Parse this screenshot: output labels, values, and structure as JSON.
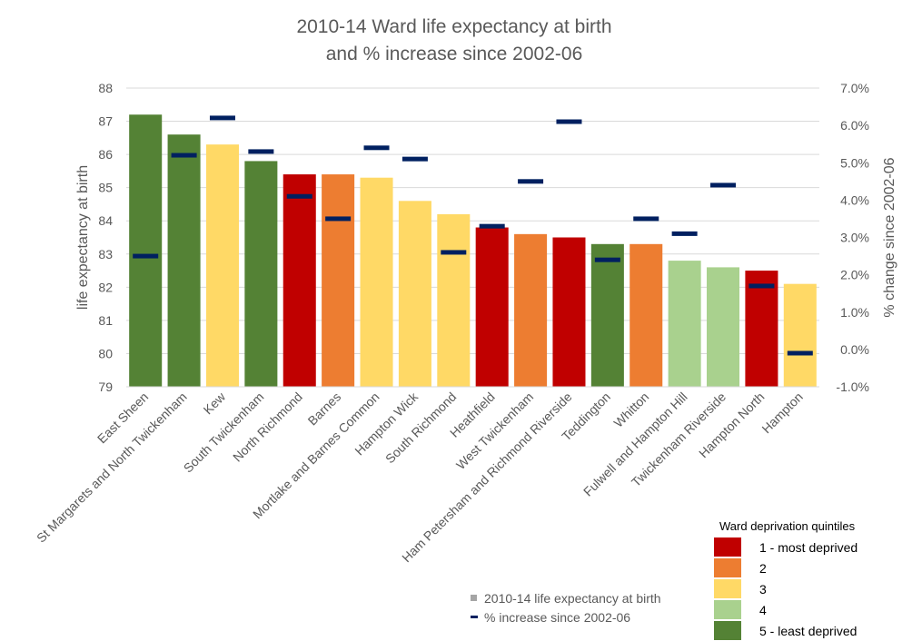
{
  "chart_data": {
    "type": "bar",
    "title": [
      "2010-14 Ward life expectancy at birth",
      "and % increase since 2002-06"
    ],
    "ylabel": "life expectancy at birth",
    "y2label": "% change since 2002-06",
    "ylim": [
      79,
      88
    ],
    "y2lim": [
      -1.0,
      7.0
    ],
    "y_ticks": [
      "79",
      "80",
      "81",
      "82",
      "83",
      "84",
      "85",
      "86",
      "87",
      "88"
    ],
    "y2_ticks": [
      "-1.0%",
      "0.0%",
      "1.0%",
      "2.0%",
      "3.0%",
      "4.0%",
      "5.0%",
      "6.0%",
      "7.0%"
    ],
    "grid": true,
    "categories": [
      "East Sheen",
      "St Margarets and North Twickenham",
      "Kew",
      "South Twickenham",
      "North Richmond",
      "Barnes",
      "Mortlake and Barnes Common",
      "Hampton Wick",
      "South Richmond",
      "Heathfield",
      "West Twickenham",
      "Ham Petersham and Richmond Riverside",
      "Teddington",
      "Whitton",
      "Fulwell and Hampton Hill",
      "Twickenham Riverside",
      "Hampton North",
      "Hampton"
    ],
    "series": [
      {
        "name": "2010-14 life expectancy at birth",
        "axis": "left",
        "type": "bar",
        "values": [
          87.2,
          86.6,
          86.3,
          85.8,
          85.4,
          85.4,
          85.3,
          84.6,
          84.2,
          83.8,
          83.6,
          83.5,
          83.3,
          83.3,
          82.8,
          82.6,
          82.5,
          82.1
        ]
      },
      {
        "name": "% increase since 2002-06",
        "axis": "right",
        "type": "marker",
        "values": [
          2.5,
          5.2,
          6.2,
          5.3,
          4.1,
          3.5,
          5.4,
          5.1,
          2.6,
          3.3,
          4.5,
          6.1,
          2.4,
          3.5,
          3.1,
          4.4,
          1.7,
          -0.1
        ]
      }
    ],
    "quintiles": [
      5,
      5,
      3,
      5,
      1,
      2,
      3,
      3,
      3,
      1,
      2,
      1,
      5,
      2,
      4,
      4,
      1,
      3
    ],
    "quintile_colors": {
      "1": "#c00000",
      "2": "#ed7d31",
      "3": "#ffd966",
      "4": "#a9d18e",
      "5": "#548235"
    },
    "marker_color": "#002060",
    "series_legend": [
      {
        "label": "2010-14 life expectancy at birth",
        "symbol": "square",
        "color": "#a5a5a5"
      },
      {
        "label": "% increase since 2002-06",
        "symbol": "dash",
        "color": "#002060"
      }
    ],
    "quintile_legend": {
      "title": "Ward deprivation quintiles",
      "items": [
        {
          "label": "1 - most deprived",
          "color": "#c00000"
        },
        {
          "label": "2",
          "color": "#ed7d31"
        },
        {
          "label": "3",
          "color": "#ffd966"
        },
        {
          "label": "4",
          "color": "#a9d18e"
        },
        {
          "label": "5 - least deprived",
          "color": "#548235"
        }
      ]
    }
  }
}
